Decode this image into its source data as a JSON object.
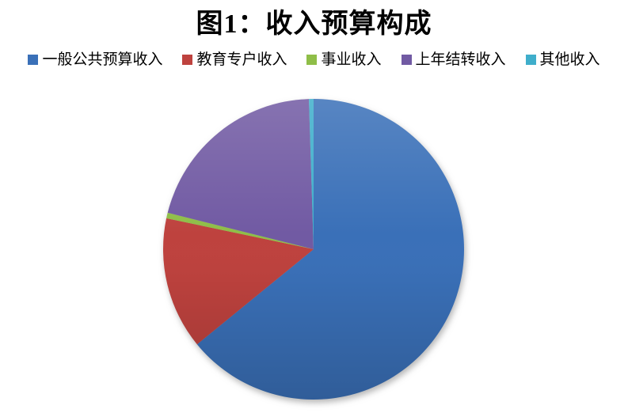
{
  "page": {
    "background_color": "#ffffff",
    "title_color": "#000000"
  },
  "chart_data": {
    "type": "pie",
    "title": "图1：收入预算构成",
    "legend_position": "top",
    "legend_entries": [
      "一般公共预算收入",
      "教育专户收入",
      "事业收入",
      "上年结转收入",
      "其他收入"
    ],
    "categories": [
      "一般公共预算收入",
      "教育专户收入",
      "事业收入",
      "上年结转收入",
      "其他收入"
    ],
    "values_pct": [
      64.1,
      14.2,
      0.6,
      20.6,
      0.5
    ],
    "colors": [
      "#3A70B8",
      "#BE423E",
      "#8FBE48",
      "#715AA3",
      "#3FAECB"
    ],
    "start_angle_deg": 0,
    "direction": "clockwise",
    "data_labels": "none",
    "grid": "off"
  }
}
